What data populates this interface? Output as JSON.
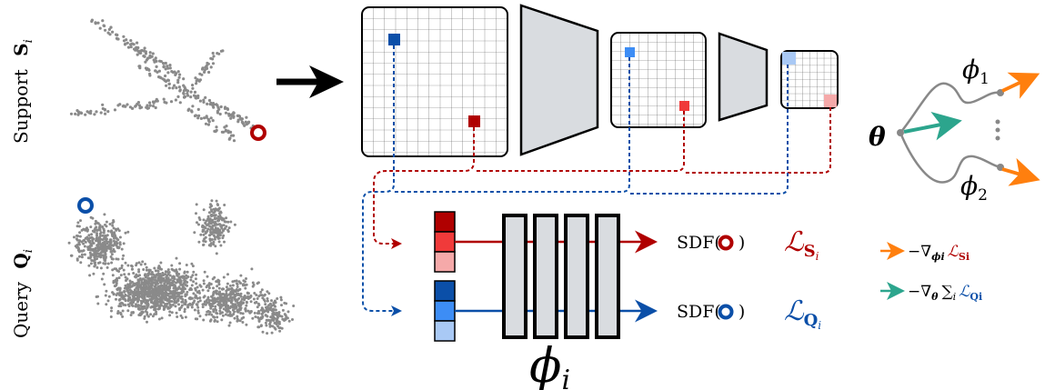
{
  "labels": {
    "support": "Support",
    "support_symbol": "S",
    "support_sub": "i",
    "query": "Query",
    "query_symbol": "Q",
    "query_sub": "i",
    "sdf_prefix": "SDF(",
    "sdf_suffix": ")",
    "loss_symbol": "ℒ",
    "loss_support_sub": "S",
    "loss_support_subsub": "i",
    "loss_query_sub": "Q",
    "loss_query_subsub": "i",
    "phi_big": "ϕ",
    "phi_big_sub": "i",
    "theta": "θ",
    "phi1": "ϕ",
    "phi1_sub": "1",
    "phi2": "ϕ",
    "phi2_sub": "2",
    "legend_support": "−∇",
    "legend_support_sub": "ϕi",
    "legend_support_loss": "ℒ",
    "legend_support_loss_sub": "Si",
    "legend_query": "−∇",
    "legend_query_sub": "θ",
    "legend_query_sum": "∑",
    "legend_query_sum_sub": "i",
    "legend_query_loss": "ℒ",
    "legend_query_loss_sub": "Qi"
  },
  "colors": {
    "support_red": "#b00000",
    "query_blue": "#0b4fa8",
    "orange": "#ff7f0e",
    "teal": "#2ca58d",
    "gray_fill": "#d9dce0",
    "points": "#8a8a8a"
  },
  "icons": {
    "main_arrow": "right-arrow-icon",
    "support_marker": "ring-marker-icon",
    "query_marker": "ring-marker-icon"
  }
}
